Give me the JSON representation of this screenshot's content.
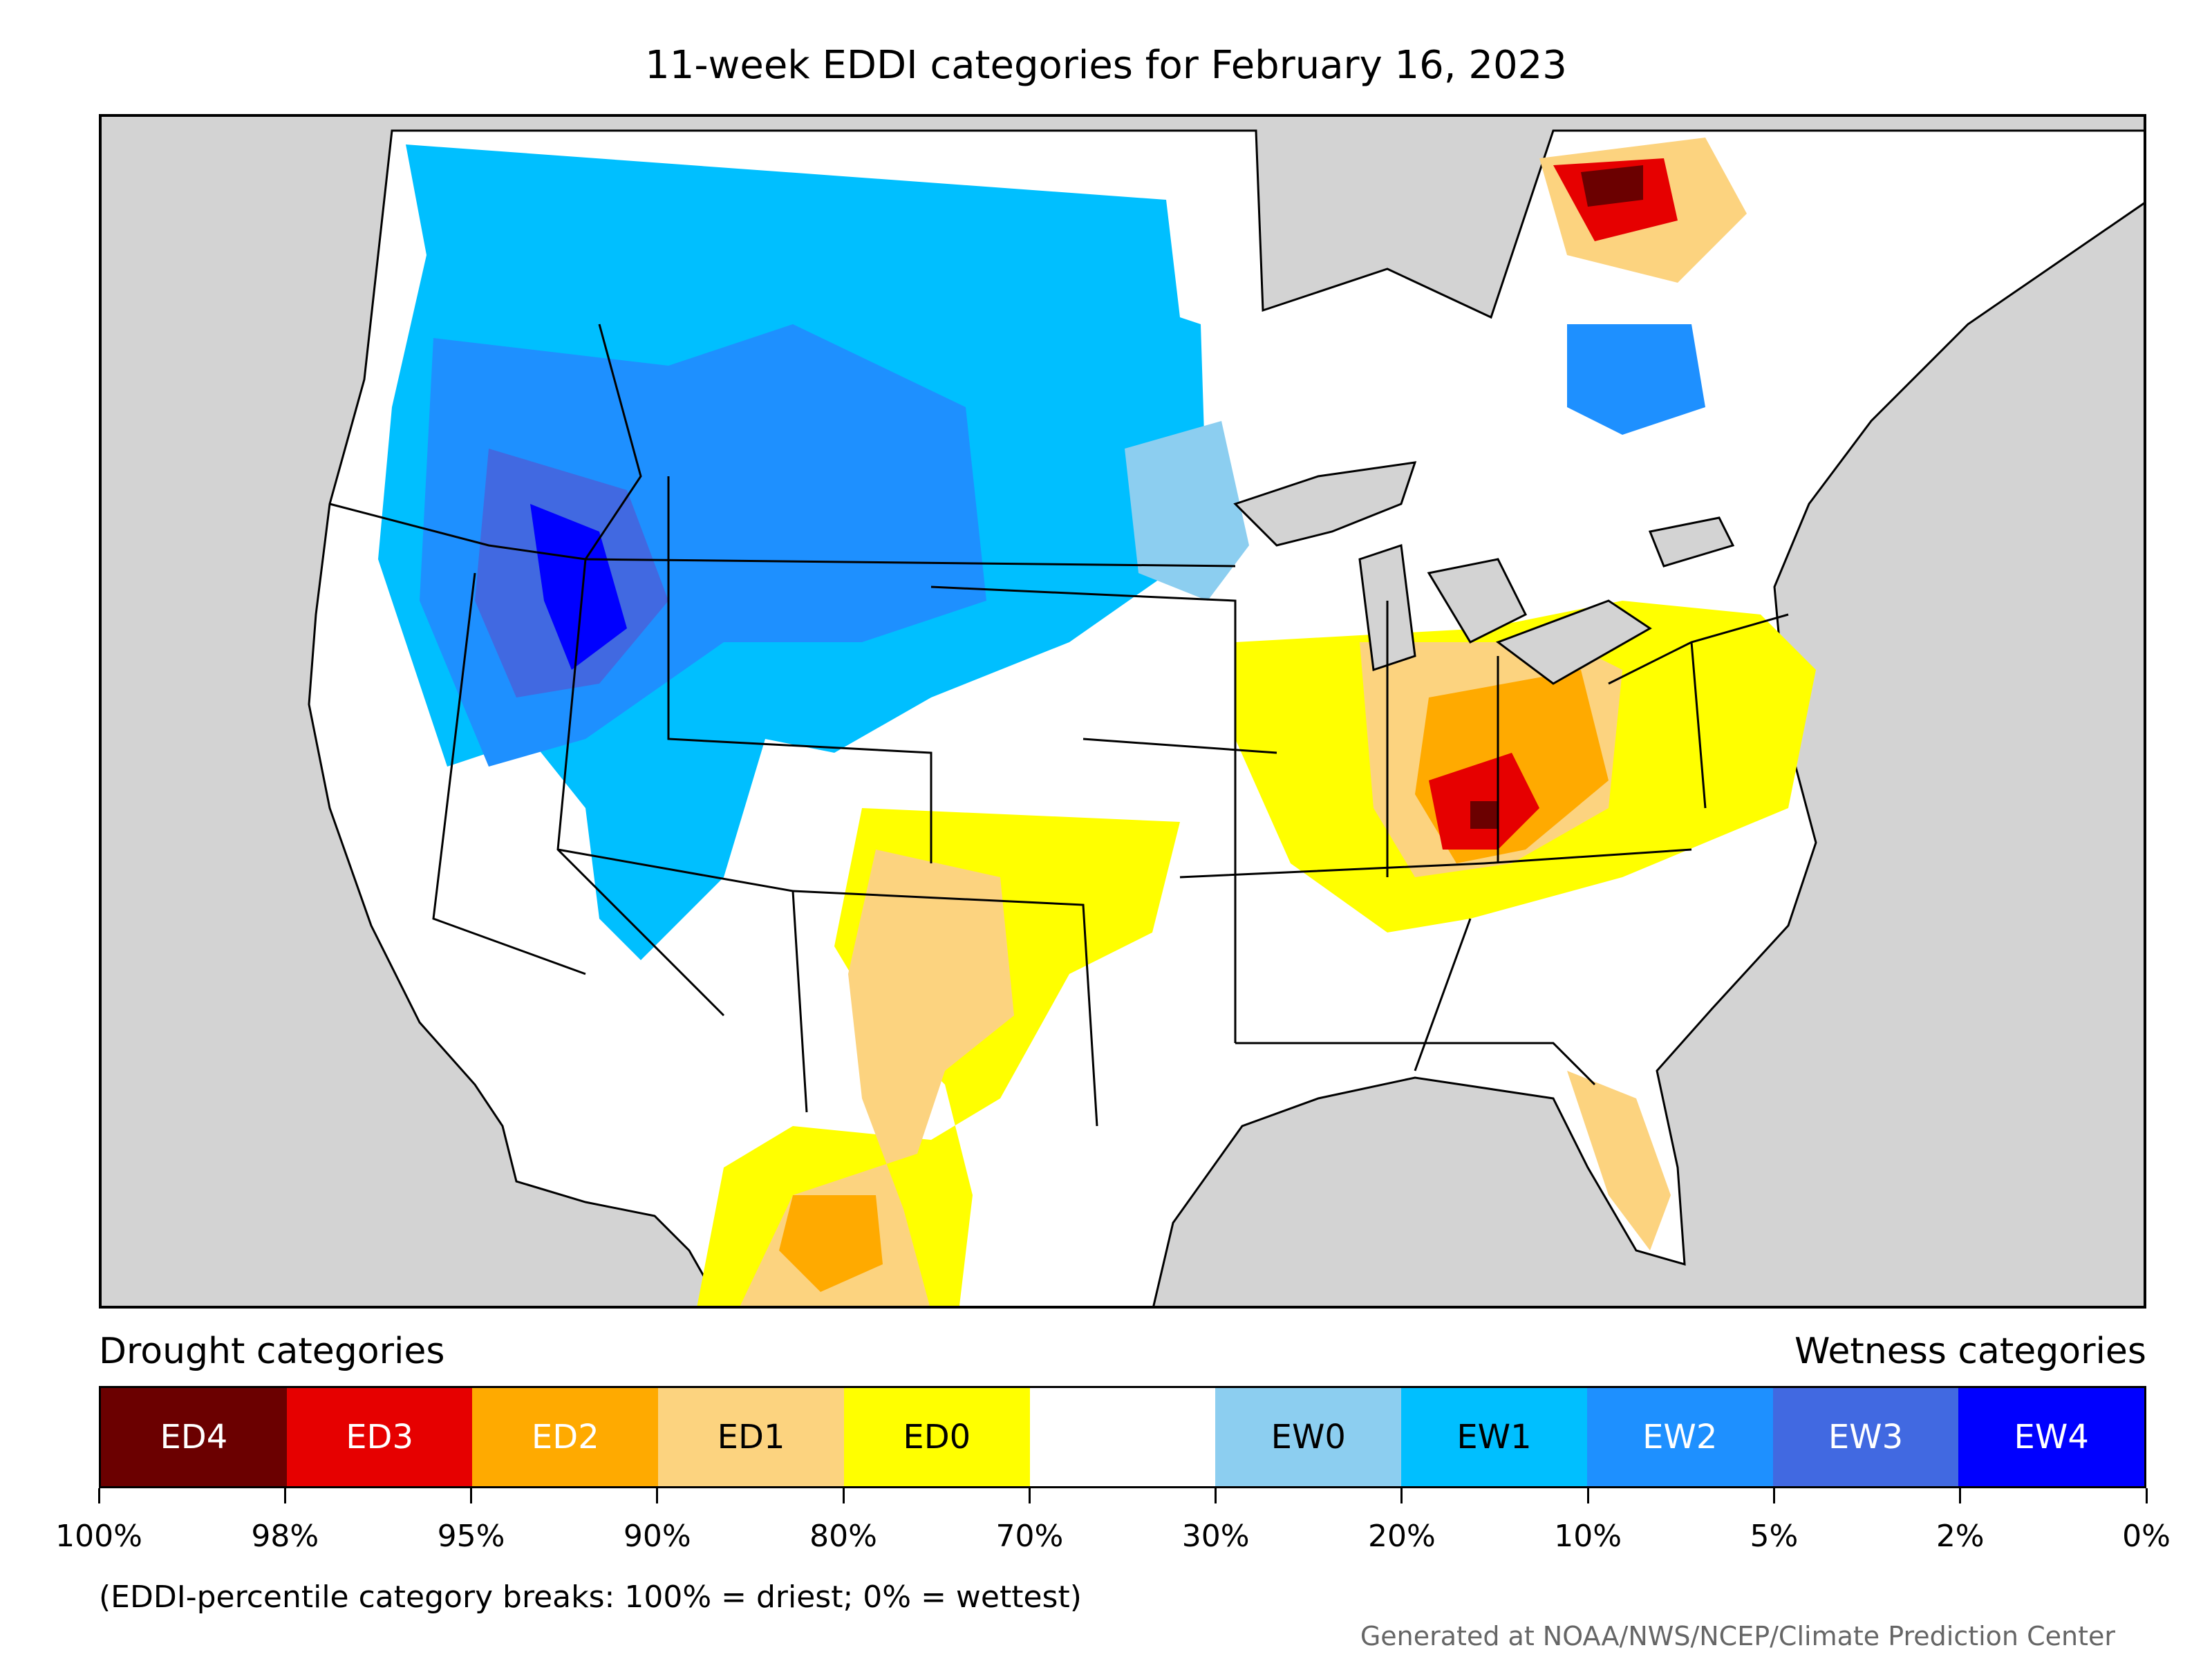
{
  "title": "11-week EDDI categories for February 16, 2023",
  "legend": {
    "drought_label": "Drought categories",
    "wetness_label": "Wetness categories",
    "categories": [
      {
        "label": "ED4",
        "color": "#6b0000",
        "text_color": "#ffffff"
      },
      {
        "label": "ED3",
        "color": "#e60000",
        "text_color": "#ffffff"
      },
      {
        "label": "ED2",
        "color": "#ffaa00",
        "text_color": "#ffffff"
      },
      {
        "label": "ED1",
        "color": "#fcd37f",
        "text_color": "#000000"
      },
      {
        "label": "ED0",
        "color": "#ffff00",
        "text_color": "#000000"
      },
      {
        "label": "",
        "color": "#ffffff",
        "text_color": "#000000"
      },
      {
        "label": "EW0",
        "color": "#8ccef0",
        "text_color": "#000000"
      },
      {
        "label": "EW1",
        "color": "#00bfff",
        "text_color": "#000000"
      },
      {
        "label": "EW2",
        "color": "#1e90ff",
        "text_color": "#ffffff"
      },
      {
        "label": "EW3",
        "color": "#4169e1",
        "text_color": "#ffffff"
      },
      {
        "label": "EW4",
        "color": "#0000ff",
        "text_color": "#ffffff"
      }
    ],
    "breaks": [
      "100%",
      "98%",
      "95%",
      "90%",
      "80%",
      "70%",
      "30%",
      "20%",
      "10%",
      "5%",
      "2%",
      "0%"
    ]
  },
  "note": "(EDDI-percentile category breaks: 100% = driest; 0% = wettest)",
  "credit": "Generated at NOAA/NWS/NCEP/Climate Prediction Center",
  "colors": {
    "background_land_outside": "#d3d3d3",
    "no_category": "#ffffff",
    "state_border": "#000000"
  }
}
